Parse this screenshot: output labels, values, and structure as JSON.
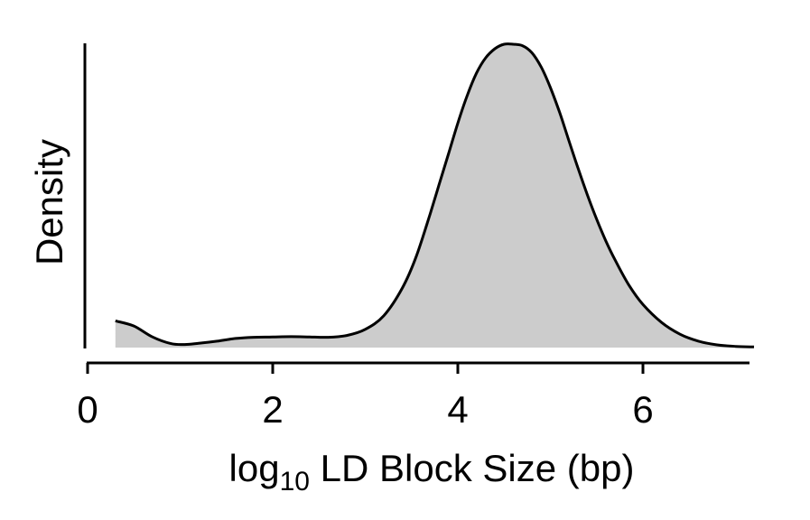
{
  "chart_data": {
    "type": "area",
    "title": "",
    "xlabel": {
      "prefix": "log",
      "subscript": "10",
      "suffix": " LD Block Size (bp)"
    },
    "ylabel": "Density",
    "xlim": [
      0,
      7.2
    ],
    "ylim": [
      0,
      1.0
    ],
    "xticks": [
      0,
      2,
      4,
      6
    ],
    "xtick_labels": [
      "0",
      "2",
      "4",
      "6"
    ],
    "yticks": [],
    "grid": false,
    "legend": "none",
    "fill_color": "#cccccc",
    "line_color": "#000000",
    "series": [
      {
        "x": [
          0.3,
          0.5,
          0.7,
          0.9,
          1.05,
          1.2,
          1.4,
          1.6,
          1.8,
          2.0,
          2.2,
          2.4,
          2.6,
          2.8,
          3.0,
          3.2,
          3.4,
          3.55,
          3.7,
          3.8,
          3.9,
          4.0,
          4.1,
          4.2,
          4.3,
          4.4,
          4.5,
          4.6,
          4.7,
          4.8,
          4.9,
          5.0,
          5.1,
          5.2,
          5.3,
          5.4,
          5.5,
          5.6,
          5.7,
          5.85,
          6.0,
          6.2,
          6.4,
          6.6,
          6.8,
          7.0,
          7.2
        ],
        "y": [
          0.088,
          0.071,
          0.035,
          0.013,
          0.01,
          0.014,
          0.021,
          0.03,
          0.034,
          0.035,
          0.036,
          0.035,
          0.034,
          0.04,
          0.06,
          0.105,
          0.196,
          0.3,
          0.44,
          0.54,
          0.64,
          0.74,
          0.83,
          0.904,
          0.955,
          0.985,
          1.0,
          1.0,
          0.995,
          0.972,
          0.925,
          0.857,
          0.775,
          0.682,
          0.59,
          0.503,
          0.423,
          0.351,
          0.288,
          0.205,
          0.142,
          0.083,
          0.044,
          0.021,
          0.009,
          0.004,
          0.002
        ]
      }
    ]
  }
}
